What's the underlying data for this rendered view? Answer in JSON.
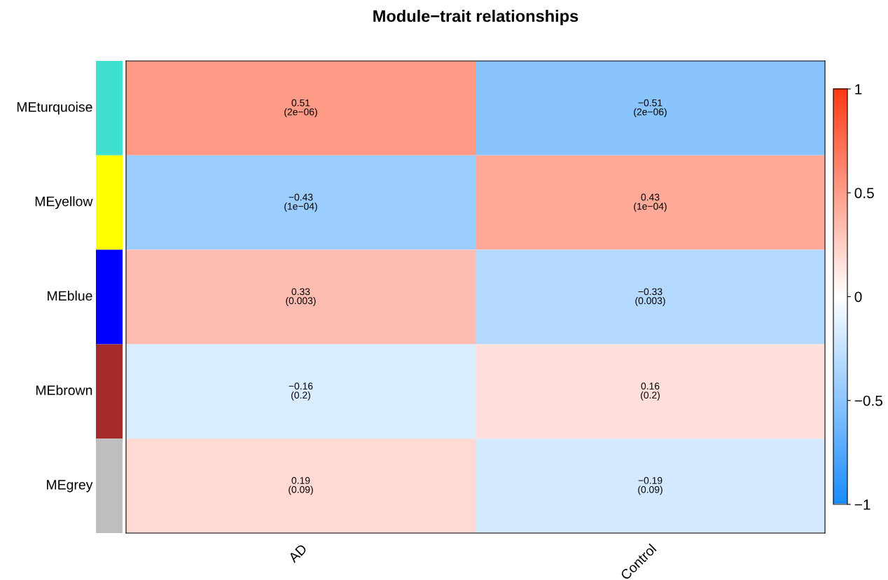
{
  "chart_data": {
    "type": "heatmap",
    "title": "Module−trait relationships",
    "categories": [
      "AD",
      "Control"
    ],
    "y_categories": [
      "MEturquoise",
      "MEyellow",
      "MEblue",
      "MEbrown",
      "MEgrey"
    ],
    "cells": [
      [
        0.51,
        -0.51
      ],
      [
        -0.43,
        0.43
      ],
      [
        0.33,
        -0.33
      ],
      [
        -0.16,
        0.16
      ],
      [
        0.19,
        -0.19
      ]
    ],
    "cell_labels": [
      [
        "0.51\n(2e−06)",
        "−0.51\n(2e−06)"
      ],
      [
        "−0.43\n(1e−04)",
        "0.43\n(1e−04)"
      ],
      [
        "0.33\n(0.003)",
        "−0.33\n(0.003)"
      ],
      [
        "−0.16\n(0.2)",
        "0.16\n(0.2)"
      ],
      [
        "0.19\n(0.09)",
        "−0.19\n(0.09)"
      ]
    ],
    "clim": [
      -1,
      1
    ],
    "cticks": [
      {
        "value": -1,
        "label": "−1"
      },
      {
        "value": -0.5,
        "label": "−0.5"
      },
      0,
      0.5,
      1
    ]
  }
}
